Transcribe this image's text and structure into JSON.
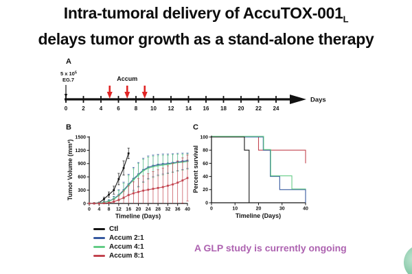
{
  "title": {
    "line1_main": "Intra-tumoral delivery of AccuTOX-001",
    "line1_sub": "L",
    "line2": "delays tumor growth as a stand-alone therapy"
  },
  "panel_a": {
    "label": "A",
    "injection": {
      "base": "5 x 10",
      "exp": "5",
      "line2": "EG.7"
    },
    "treatment_label": "Accum",
    "treatment_days": [
      5,
      7,
      9
    ],
    "arrow_color": "#e02424",
    "axis": {
      "start": 0,
      "end": 24,
      "step": 2,
      "label": "Days"
    }
  },
  "panel_b": {
    "label": "B"
  },
  "panel_c": {
    "label": "C"
  },
  "legend": {
    "items": [
      {
        "label": "Ctl",
        "color": "#141414"
      },
      {
        "label": "Accum 2:1",
        "color": "#35589f"
      },
      {
        "label": "Accum 4:1",
        "color": "#63cc85"
      },
      {
        "label": "Accum 8:1",
        "color": "#c2434e"
      }
    ]
  },
  "note": {
    "text": "A GLP study is currently ongoing",
    "color": "#ad62b0"
  },
  "chart_data": [
    {
      "type": "line",
      "title": "",
      "xlabel": "Timeline (Days)",
      "ylabel": "Tumor Volume (mm³)",
      "xlim": [
        0,
        40
      ],
      "xticks": [
        0,
        4,
        8,
        12,
        16,
        20,
        24,
        28,
        32,
        36,
        40
      ],
      "ylim": [
        0,
        1500
      ],
      "yticks": [
        0,
        300,
        600,
        900,
        1200,
        1500
      ],
      "grid": false,
      "legend_position": "below-left",
      "series": [
        {
          "name": "Ctl",
          "color": "#141414",
          "marker": "square",
          "x": [
            0,
            2,
            4,
            6,
            8,
            10,
            12,
            14,
            16
          ],
          "y": [
            0,
            5,
            15,
            100,
            200,
            300,
            550,
            800,
            1130
          ],
          "err": [
            0,
            5,
            10,
            40,
            60,
            90,
            130,
            160,
            120
          ]
        },
        {
          "name": "Accum 2:1",
          "color": "#35589f",
          "marker": "square",
          "x": [
            0,
            2,
            4,
            6,
            8,
            10,
            12,
            14,
            16,
            18,
            20,
            22,
            24,
            26,
            28,
            30,
            32,
            34,
            36,
            38,
            40
          ],
          "y": [
            0,
            0,
            10,
            25,
            55,
            105,
            190,
            300,
            430,
            555,
            655,
            755,
            815,
            850,
            875,
            890,
            900,
            915,
            935,
            950,
            965
          ],
          "err": [
            0,
            0,
            5,
            15,
            30,
            60,
            120,
            180,
            230,
            260,
            270,
            265,
            255,
            245,
            235,
            225,
            215,
            205,
            195,
            185,
            175
          ]
        },
        {
          "name": "Accum 4:1",
          "color": "#63cc85",
          "marker": "plus",
          "x": [
            0,
            2,
            4,
            6,
            8,
            10,
            12,
            14,
            16,
            18,
            20,
            22,
            24,
            26,
            28,
            30,
            32,
            34,
            36,
            38,
            40
          ],
          "y": [
            0,
            0,
            8,
            20,
            48,
            95,
            175,
            280,
            405,
            530,
            635,
            735,
            795,
            825,
            850,
            865,
            880,
            900,
            920,
            930,
            945
          ],
          "err": [
            0,
            0,
            5,
            12,
            28,
            55,
            115,
            175,
            225,
            255,
            265,
            260,
            250,
            240,
            230,
            220,
            210,
            200,
            190,
            180,
            170
          ]
        },
        {
          "name": "Accum 8:1",
          "color": "#c2434e",
          "marker": "square",
          "x": [
            0,
            2,
            4,
            6,
            8,
            10,
            12,
            14,
            16,
            18,
            20,
            22,
            24,
            26,
            28,
            30,
            32,
            34,
            36,
            38,
            40
          ],
          "y": [
            0,
            0,
            0,
            5,
            15,
            40,
            80,
            130,
            190,
            230,
            260,
            290,
            310,
            330,
            350,
            370,
            400,
            430,
            470,
            520,
            575
          ],
          "err": [
            0,
            0,
            0,
            5,
            15,
            45,
            95,
            150,
            210,
            260,
            300,
            330,
            360,
            390,
            410,
            430,
            450,
            470,
            490,
            510,
            520
          ]
        }
      ]
    },
    {
      "type": "line",
      "subtype": "kaplan-meier-step",
      "title": "",
      "xlabel": "Timeline (Days)",
      "ylabel": "Percent survival",
      "xlim": [
        0,
        40
      ],
      "xticks": [
        0,
        10,
        20,
        30,
        40
      ],
      "ylim": [
        0,
        100
      ],
      "yticks": [
        0,
        20,
        40,
        60,
        80,
        100
      ],
      "grid": false,
      "series": [
        {
          "name": "Ctl",
          "color": "#141414",
          "steps": [
            [
              0,
              100
            ],
            [
              14,
              100
            ],
            [
              14,
              80
            ],
            [
              16,
              80
            ],
            [
              16,
              0
            ]
          ]
        },
        {
          "name": "Accum 2:1",
          "color": "#35589f",
          "steps": [
            [
              0,
              100
            ],
            [
              22,
              100
            ],
            [
              22,
              80
            ],
            [
              25,
              80
            ],
            [
              25,
              40
            ],
            [
              29,
              40
            ],
            [
              29,
              20
            ],
            [
              40,
              20
            ],
            [
              40,
              0
            ]
          ]
        },
        {
          "name": "Accum 4:1",
          "color": "#63cc85",
          "steps": [
            [
              0,
              100
            ],
            [
              22,
              100
            ],
            [
              22,
              80
            ],
            [
              25,
              80
            ],
            [
              25,
              40
            ],
            [
              34,
              40
            ],
            [
              34,
              20
            ],
            [
              40,
              20
            ]
          ]
        },
        {
          "name": "Accum 8:1",
          "color": "#c2434e",
          "steps": [
            [
              0,
              100
            ],
            [
              20,
              100
            ],
            [
              20,
              80
            ],
            [
              40,
              80
            ],
            [
              40,
              60
            ]
          ]
        }
      ]
    }
  ]
}
